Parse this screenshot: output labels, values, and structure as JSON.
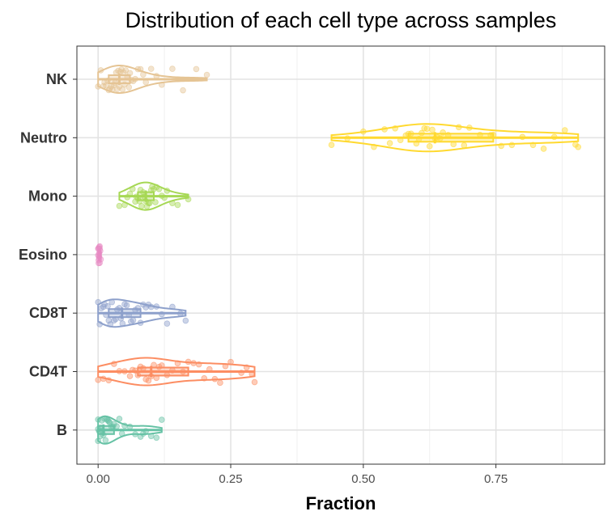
{
  "chart_data": {
    "type": "violin",
    "title": "Distribution of each cell type across samples",
    "xlabel": "Fraction",
    "ylabel": "",
    "xlim": [
      -0.04,
      0.955
    ],
    "xticks": [
      0,
      0.25,
      0.5,
      0.75
    ],
    "xtick_labels": [
      "0.00",
      "0.25",
      "0.50",
      "0.75"
    ],
    "grid": true,
    "legend": "none",
    "categories": [
      "NK",
      "Neutro",
      "Mono",
      "Eosino",
      "CD8T",
      "CD4T",
      "B"
    ],
    "series": [
      {
        "category": "NK",
        "color": "#E5C494",
        "min": 0.0,
        "q1": 0.02,
        "median": 0.04,
        "q3": 0.06,
        "max": 0.205,
        "points": [
          0.0,
          0.005,
          0.01,
          0.012,
          0.015,
          0.018,
          0.02,
          0.022,
          0.025,
          0.027,
          0.03,
          0.032,
          0.034,
          0.036,
          0.038,
          0.04,
          0.042,
          0.044,
          0.046,
          0.048,
          0.05,
          0.052,
          0.055,
          0.058,
          0.06,
          0.063,
          0.066,
          0.07,
          0.075,
          0.08,
          0.085,
          0.09,
          0.1,
          0.11,
          0.12,
          0.14,
          0.16,
          0.185,
          0.205
        ]
      },
      {
        "category": "Neutro",
        "color": "#FFD92F",
        "min": 0.44,
        "q1": 0.585,
        "median": 0.635,
        "q3": 0.745,
        "max": 0.905,
        "points": [
          0.44,
          0.47,
          0.5,
          0.52,
          0.54,
          0.55,
          0.56,
          0.57,
          0.58,
          0.585,
          0.59,
          0.6,
          0.605,
          0.61,
          0.615,
          0.62,
          0.625,
          0.63,
          0.635,
          0.64,
          0.645,
          0.65,
          0.66,
          0.67,
          0.68,
          0.69,
          0.7,
          0.72,
          0.74,
          0.745,
          0.76,
          0.78,
          0.8,
          0.82,
          0.84,
          0.86,
          0.88,
          0.9,
          0.905
        ]
      },
      {
        "category": "Mono",
        "color": "#A6D854",
        "min": 0.04,
        "q1": 0.075,
        "median": 0.09,
        "q3": 0.105,
        "max": 0.17,
        "points": [
          0.04,
          0.05,
          0.055,
          0.06,
          0.065,
          0.07,
          0.072,
          0.075,
          0.078,
          0.08,
          0.082,
          0.085,
          0.087,
          0.09,
          0.092,
          0.095,
          0.097,
          0.1,
          0.102,
          0.105,
          0.108,
          0.11,
          0.115,
          0.12,
          0.125,
          0.13,
          0.14,
          0.15,
          0.17
        ]
      },
      {
        "category": "Eosino",
        "color": "#E78AC3",
        "min": 0.0,
        "q1": 0.001,
        "median": 0.002,
        "q3": 0.003,
        "max": 0.005,
        "points": [
          0.0,
          0.001,
          0.001,
          0.002,
          0.002,
          0.002,
          0.003,
          0.003,
          0.004,
          0.005,
          0.001,
          0.002,
          0.0,
          0.003
        ]
      },
      {
        "category": "CD8T",
        "color": "#8DA0CB",
        "min": 0.0,
        "q1": 0.02,
        "median": 0.045,
        "q3": 0.08,
        "max": 0.165,
        "points": [
          0.0,
          0.003,
          0.006,
          0.01,
          0.012,
          0.015,
          0.018,
          0.02,
          0.023,
          0.026,
          0.03,
          0.033,
          0.036,
          0.04,
          0.043,
          0.046,
          0.05,
          0.054,
          0.058,
          0.062,
          0.066,
          0.07,
          0.075,
          0.08,
          0.085,
          0.09,
          0.095,
          0.1,
          0.11,
          0.12,
          0.13,
          0.14,
          0.155,
          0.165
        ]
      },
      {
        "category": "CD4T",
        "color": "#FC8D62",
        "min": 0.0,
        "q1": 0.075,
        "median": 0.1,
        "q3": 0.17,
        "max": 0.295,
        "points": [
          0.0,
          0.01,
          0.02,
          0.03,
          0.04,
          0.05,
          0.06,
          0.065,
          0.07,
          0.075,
          0.08,
          0.085,
          0.09,
          0.095,
          0.1,
          0.105,
          0.11,
          0.115,
          0.12,
          0.13,
          0.14,
          0.15,
          0.16,
          0.17,
          0.18,
          0.19,
          0.2,
          0.21,
          0.22,
          0.23,
          0.24,
          0.25,
          0.27,
          0.28,
          0.29,
          0.295
        ]
      },
      {
        "category": "B",
        "color": "#66C2A5",
        "min": 0.0,
        "q1": 0.0,
        "median": 0.01,
        "q3": 0.03,
        "max": 0.12,
        "points": [
          0.0,
          0.0,
          0.0,
          0.002,
          0.004,
          0.005,
          0.007,
          0.008,
          0.01,
          0.012,
          0.014,
          0.016,
          0.018,
          0.02,
          0.022,
          0.025,
          0.028,
          0.03,
          0.035,
          0.04,
          0.045,
          0.05,
          0.06,
          0.07,
          0.08,
          0.085,
          0.09,
          0.1,
          0.11,
          0.12
        ]
      }
    ]
  }
}
